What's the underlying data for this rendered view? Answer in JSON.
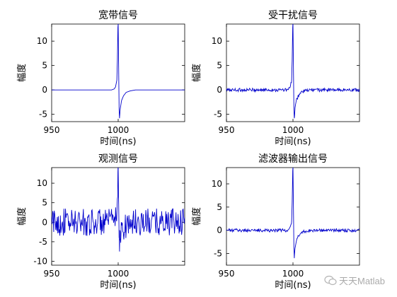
{
  "chart_data": [
    {
      "type": "line",
      "title": "宽带信号",
      "xlabel": "时间(ns)",
      "ylabel": "幅度",
      "xlim": [
        950,
        1050
      ],
      "ylim": [
        -6.5,
        13.5
      ],
      "xticks": [
        950,
        1000
      ],
      "yticks": [
        -5,
        0,
        5,
        10
      ],
      "series": [
        {
          "color": "#0000cc",
          "x": [
            950,
            995,
            997,
            998,
            999,
            999.4,
            999.8,
            1000,
            1000.3,
            1000.7,
            1001,
            1001.5,
            1002.5,
            1004,
            1006,
            1009,
            1013,
            1050
          ],
          "y": [
            0,
            0,
            0.2,
            0.6,
            2,
            6,
            12.8,
            13.5,
            6,
            -4,
            -5.8,
            -4,
            -2.2,
            -1.2,
            -0.5,
            -0.2,
            0,
            0
          ]
        }
      ]
    },
    {
      "type": "line",
      "title": "受干扰信号",
      "xlabel": "时间(ns)",
      "ylabel": "幅度",
      "xlim": [
        950,
        1050
      ],
      "ylim": [
        -6.5,
        13.5
      ],
      "xticks": [
        950,
        1000
      ],
      "yticks": [
        -5,
        0,
        5,
        10
      ],
      "series": [
        {
          "color": "#0000cc",
          "noise_amplitude": 0.35,
          "x": [
            950,
            995,
            997,
            998,
            999,
            999.4,
            999.8,
            1000,
            1000.3,
            1000.7,
            1001,
            1001.5,
            1002.5,
            1004,
            1006,
            1009,
            1013,
            1050
          ],
          "y": [
            0,
            0,
            0.2,
            0.6,
            2,
            6,
            12.8,
            13.5,
            6,
            -4,
            -5.8,
            -4,
            -2.2,
            -1.2,
            -0.5,
            -0.2,
            0,
            0
          ]
        }
      ]
    },
    {
      "type": "line",
      "title": "观测信号",
      "xlabel": "时间(ns)",
      "ylabel": "幅度",
      "xlim": [
        950,
        1050
      ],
      "ylim": [
        -11,
        14
      ],
      "xticks": [
        950,
        1000
      ],
      "yticks": [
        -10,
        -5,
        0,
        5,
        10
      ],
      "series": [
        {
          "color": "#0000cc",
          "noise_amplitude": 3.5,
          "x": [
            950,
            995,
            997,
            998,
            999,
            999.4,
            999.8,
            1000,
            1000.3,
            1000.7,
            1001,
            1001.5,
            1002.5,
            1004,
            1006,
            1009,
            1013,
            1050
          ],
          "y": [
            0,
            0,
            0.2,
            0.6,
            2,
            6,
            12.8,
            14,
            6,
            -4,
            -7.5,
            -4,
            -2.2,
            -1.2,
            -0.5,
            -0.2,
            0,
            0
          ]
        }
      ]
    },
    {
      "type": "line",
      "title": "滤波器输出信号",
      "xlabel": "时间(ns)",
      "ylabel": "幅度",
      "xlim": [
        950,
        1050
      ],
      "ylim": [
        -7.5,
        13.5
      ],
      "xticks": [
        950,
        1000
      ],
      "yticks": [
        -5,
        0,
        5,
        10
      ],
      "series": [
        {
          "color": "#0000cc",
          "noise_amplitude": 0.35,
          "x": [
            950,
            995,
            997,
            998,
            999,
            999.4,
            999.8,
            1000,
            1000.3,
            1000.7,
            1001,
            1001.5,
            1002.5,
            1004,
            1006,
            1009,
            1013,
            1050
          ],
          "y": [
            0,
            0,
            0.2,
            0.6,
            2,
            6,
            12.8,
            13.5,
            6,
            -4,
            -6,
            -4,
            -2.2,
            -1.2,
            -0.5,
            -0.2,
            0,
            0
          ]
        }
      ]
    }
  ],
  "watermark": {
    "text": "天天Matlab",
    "icon": "wechat-icon"
  }
}
